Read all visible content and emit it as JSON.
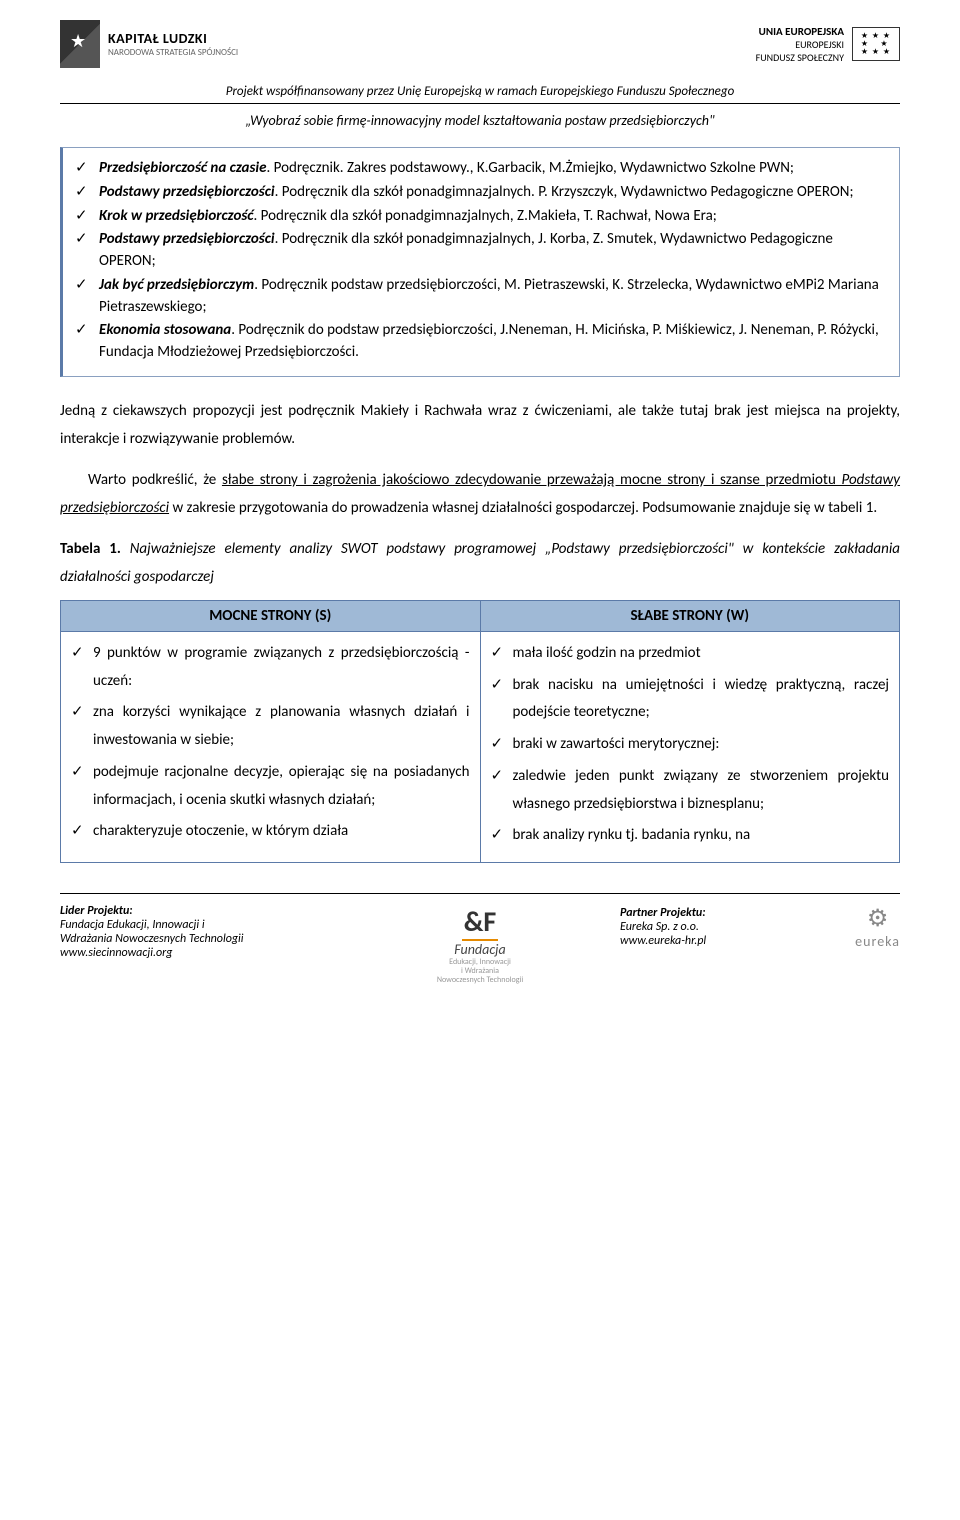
{
  "header": {
    "logo_left_line1": "KAPITAŁ LUDZKI",
    "logo_left_line2": "NARODOWA STRATEGIA SPÓJNOŚCI",
    "logo_right_line1": "UNIA EUROPEJSKA",
    "logo_right_line2": "EUROPEJSKI",
    "logo_right_line3": "FUNDUSZ SPOŁECZNY",
    "project_line": "Projekt współfinansowany przez Unię Europejską w ramach Europejskiego Funduszu Społecznego",
    "subtitle": "„Wyobraź sobie firmę-innowacyjny model kształtowania postaw przedsiębiorczych\""
  },
  "box_items": [
    {
      "title": "Przedsiębiorczość na czasie",
      "rest": ". Podręcznik. Zakres podstawowy., K.Garbacik, M.Żmiejko, Wydawnictwo Szkolne PWN;"
    },
    {
      "title": "Podstawy przedsiębiorczości",
      "rest": ". Podręcznik dla szkół ponadgimnazjalnych. P. Krzyszczyk, Wydawnictwo Pedagogiczne OPERON;"
    },
    {
      "title": "Krok w przedsiębiorczość",
      "rest": ". Podręcznik dla szkół ponadgimnazjalnych, Z.Makieła, T. Rachwał, Nowa Era;"
    },
    {
      "title": "Podstawy przedsiębiorczości",
      "rest": ". Podręcznik dla szkół ponadgimnazjalnych, J. Korba, Z. Smutek, Wydawnictwo Pedagogiczne OPERON;"
    },
    {
      "title": "Jak być przedsiębiorczym",
      "rest": ". Podręcznik podstaw przedsiębiorczości, M. Pietraszewski, K. Strzelecka, Wydawnictwo eMPi2 Mariana Pietraszewskiego;"
    },
    {
      "title": "Ekonomia stosowana",
      "rest": ". Podręcznik do podstaw przedsiębiorczości, J.Neneman, H. Micińska, P. Miśkiewicz, J. Neneman, P. Różycki, Fundacja Młodzieżowej Przedsiębiorczości."
    }
  ],
  "body": {
    "p1": "Jedną z ciekawszych propozycji jest podręcznik Makieły i Rachwała wraz z ćwiczeniami, ale także tutaj brak jest miejsca na projekty, interakcje i rozwiązywanie problemów.",
    "p2_pre": "Warto podkreślić, że ",
    "p2_underline": "słabe strony i zagrożenia jakościowo zdecydowanie przeważają mocne strony i szanse przedmiotu ",
    "p2_italic": "Podstawy przedsiębiorczości",
    "p2_post": " w zakresie przygotowania do prowadzenia własnej działalności gospodarczej. Podsumowanie znajduje się w tabeli 1."
  },
  "table": {
    "caption_pre": "Tabela 1. ",
    "caption_rest": "Najważniejsze elementy analizy SWOT podstawy programowej „Podstawy przedsiębiorczości\" w kontekście zakładania działalności gospodarczej",
    "header_s": "MOCNE STRONY (S)",
    "header_w": "SŁABE STRONY (W)",
    "col_s": [
      "9 punktów w programie związanych z przedsiębiorczością - uczeń:",
      "zna korzyści wynikające z planowania własnych działań i inwestowania w siebie;",
      "podejmuje racjonalne decyzje, opierając się na posiadanych informacjach, i ocenia skutki własnych działań;",
      "charakteryzuje otoczenie, w którym działa"
    ],
    "col_w": [
      "mała ilość godzin na przedmiot",
      "brak nacisku na umiejętności i wiedzę praktyczną, raczej podejście teoretyczne;",
      "braki w zawartości merytorycznej:",
      "zaledwie jeden punkt związany ze stworzeniem projektu własnego przedsiębiorstwa i biznesplanu;",
      "brak analizy rynku tj. badania rynku, na"
    ],
    "colors": {
      "header_bg": "#9fb9d6",
      "border": "#5b7aa8"
    }
  },
  "footer": {
    "left_title": "Lider Projektu:",
    "left_line1": "Fundacja Edukacji, Innowacji i",
    "left_line2": "Wdrażania Nowoczesnych Technologii",
    "left_line3": "www.siecinnowacji.org",
    "center_logo": "Fundacja",
    "center_sub1": "Edukacji, Innowacji",
    "center_sub2": "i Wdrażania",
    "center_sub3": "Nowoczesnych Technologii",
    "right_title": "Partner Projektu:",
    "right_line1": "Eureka Sp. z o.o.",
    "right_line2": "www.eureka-hr.pl",
    "eureka_name": "eureka"
  }
}
